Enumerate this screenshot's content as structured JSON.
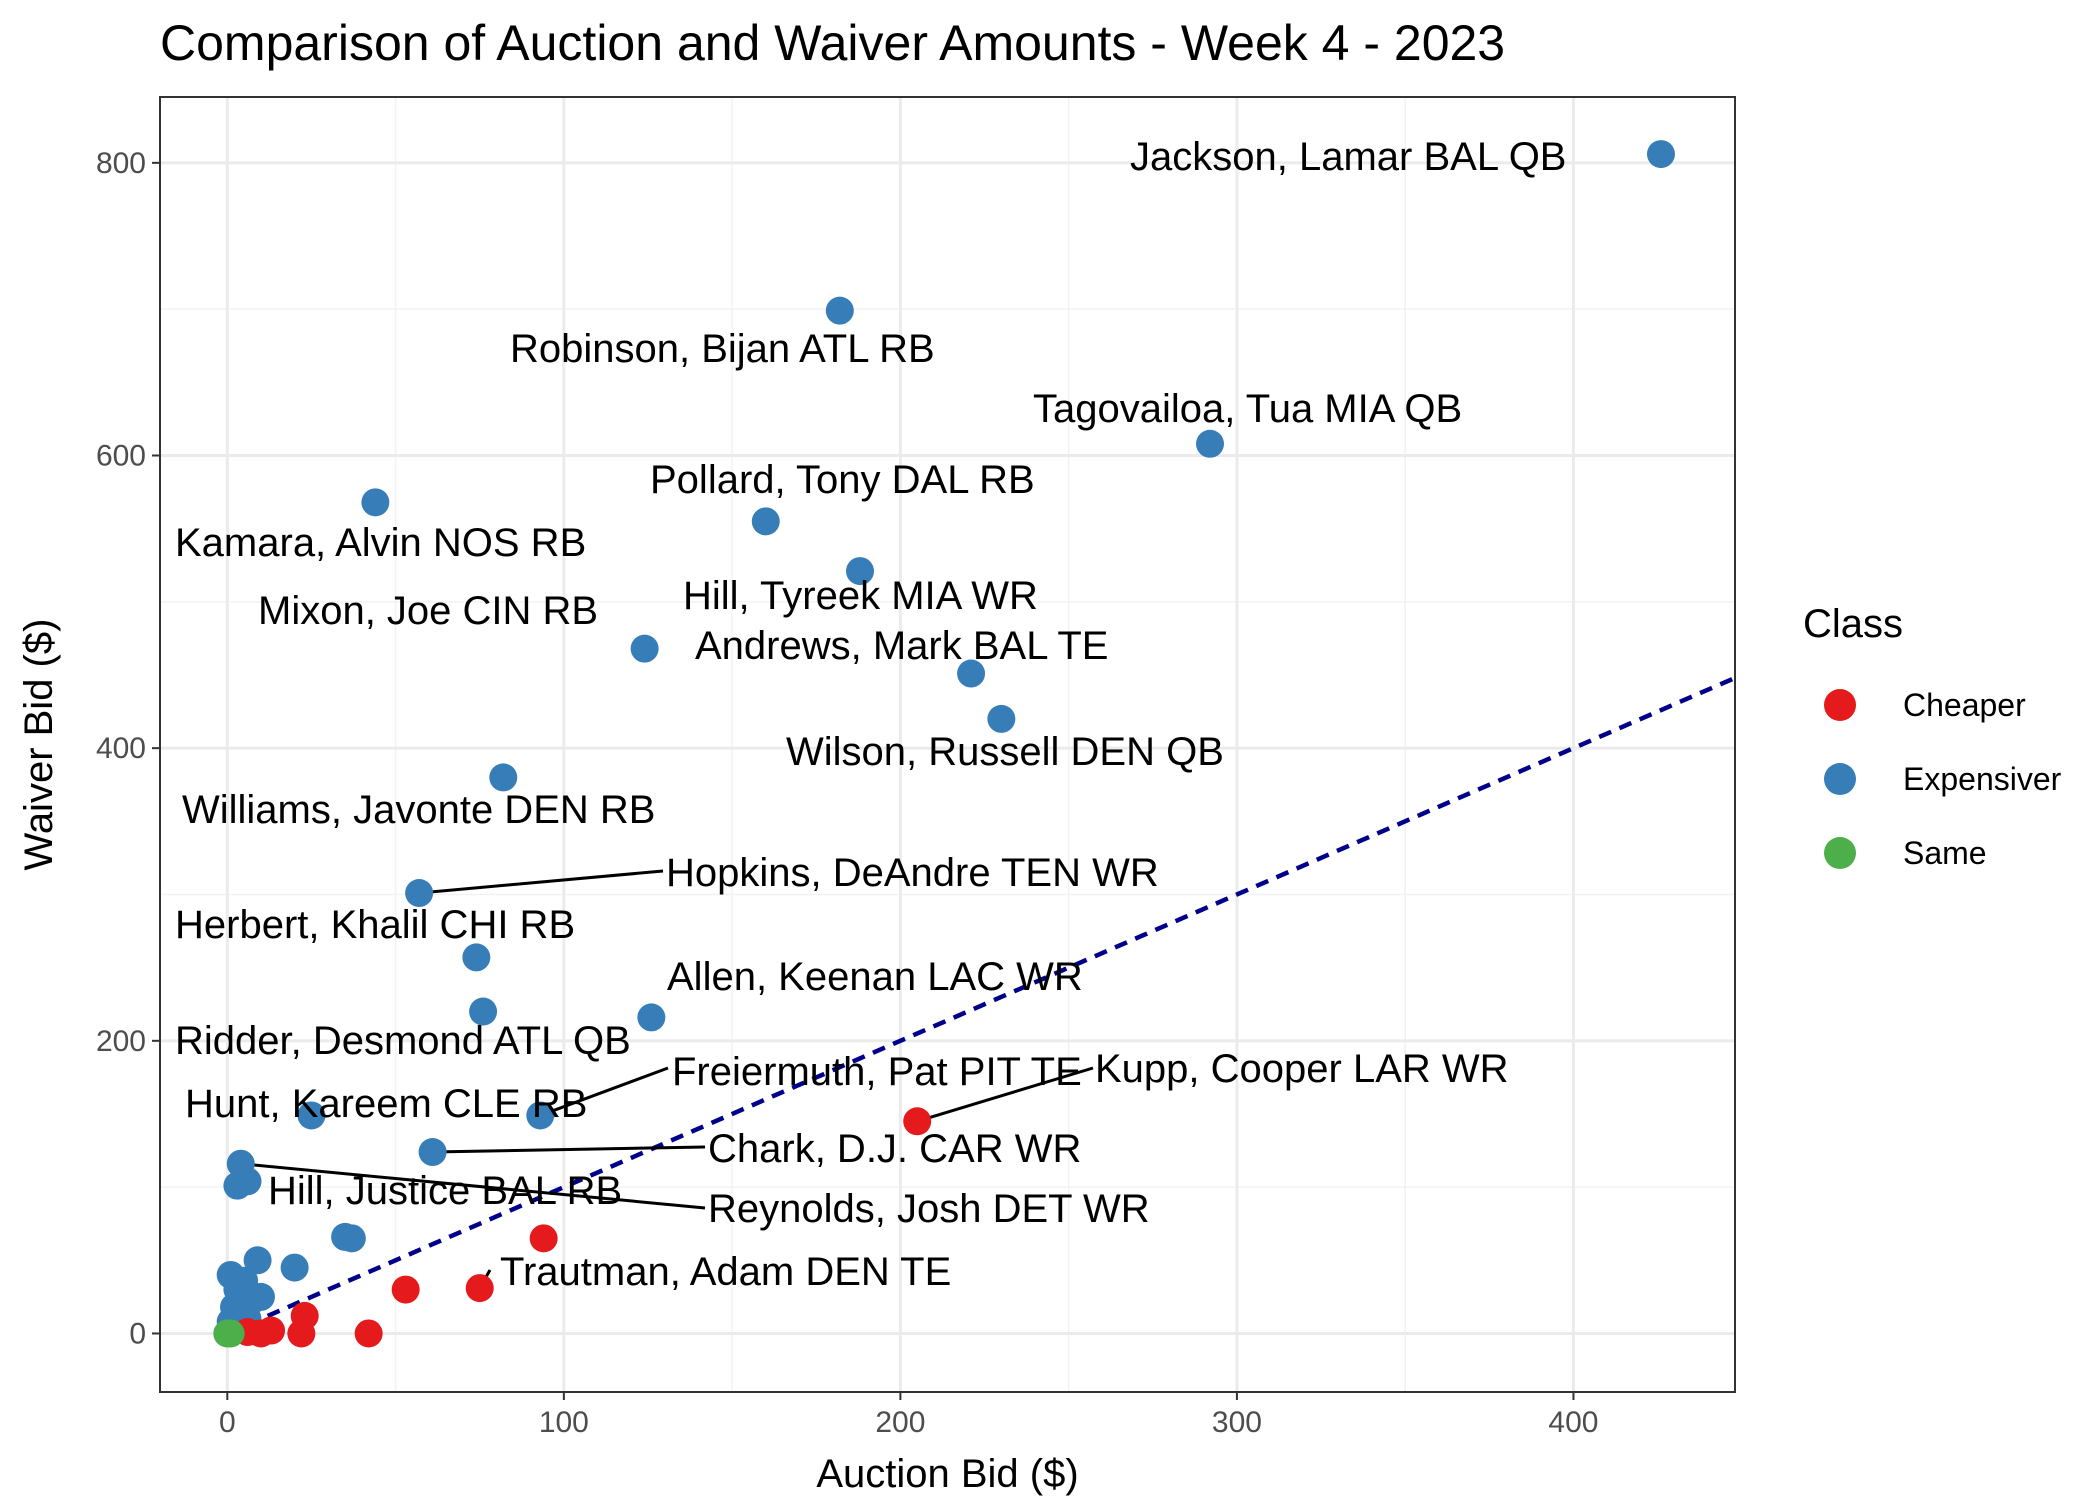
{
  "chart_data": {
    "type": "scatter",
    "title": "Comparison of Auction and Waiver Amounts - Week 4 - 2023",
    "xlabel": "Auction Bid ($)",
    "ylabel": "Waiver Bid ($)",
    "xlim": [
      -20,
      448
    ],
    "ylim": [
      -40,
      845
    ],
    "x_ticks": [
      0,
      100,
      200,
      300,
      400
    ],
    "y_ticks": [
      0,
      200,
      400,
      600,
      800
    ],
    "grid": true,
    "legend": {
      "title": "Class",
      "position": "right",
      "entries": [
        {
          "label": "Cheaper",
          "color": "#E41A1C"
        },
        {
          "label": "Expensiver",
          "color": "#377EB8"
        },
        {
          "label": "Same",
          "color": "#4DAF4A"
        }
      ]
    },
    "reference_line": {
      "slope": 1,
      "intercept": 0,
      "style": "dashed",
      "color": "#00008B"
    },
    "labeled_points": [
      {
        "label": "Jackson, Lamar BAL QB",
        "x": 426,
        "y": 806,
        "class": "Expensiver"
      },
      {
        "label": "Robinson, Bijan ATL RB",
        "x": 182,
        "y": 699,
        "class": "Expensiver"
      },
      {
        "label": "Tagovailoa, Tua MIA QB",
        "x": 292,
        "y": 608,
        "class": "Expensiver"
      },
      {
        "label": "Kamara, Alvin NOS RB",
        "x": 44,
        "y": 568,
        "class": "Expensiver"
      },
      {
        "label": "Pollard, Tony DAL RB",
        "x": 160,
        "y": 555,
        "class": "Expensiver"
      },
      {
        "label": "Hill, Tyreek MIA WR",
        "x": 188,
        "y": 521,
        "class": "Expensiver"
      },
      {
        "label": "Mixon, Joe CIN RB",
        "x": 124,
        "y": 468,
        "class": "Expensiver"
      },
      {
        "label": "Andrews, Mark BAL TE",
        "x": 221,
        "y": 451,
        "class": "Expensiver"
      },
      {
        "label": "Wilson, Russell DEN QB",
        "x": 230,
        "y": 420,
        "class": "Expensiver"
      },
      {
        "label": "Williams, Javonte DEN RB",
        "x": 82,
        "y": 380,
        "class": "Expensiver"
      },
      {
        "label": "Hopkins, DeAndre TEN WR",
        "x": 57,
        "y": 301,
        "class": "Expensiver"
      },
      {
        "label": "Herbert, Khalil CHI RB",
        "x": 74,
        "y": 257,
        "class": "Expensiver"
      },
      {
        "label": "Ridder, Desmond ATL QB",
        "x": 76,
        "y": 220,
        "class": "Expensiver"
      },
      {
        "label": "Allen, Keenan LAC WR",
        "x": 126,
        "y": 216,
        "class": "Expensiver"
      },
      {
        "label": "Freiermuth, Pat PIT TE",
        "x": 93,
        "y": 149,
        "class": "Expensiver"
      },
      {
        "label": "Kupp, Cooper LAR WR",
        "x": 205,
        "y": 145,
        "class": "Cheaper"
      },
      {
        "label": "Hunt, Kareem CLE RB",
        "x": 25,
        "y": 149,
        "class": "Expensiver"
      },
      {
        "label": "Chark, D.J. CAR WR",
        "x": 61,
        "y": 124,
        "class": "Expensiver"
      },
      {
        "label": "Reynolds, Josh DET WR",
        "x": 4,
        "y": 116,
        "class": "Expensiver"
      },
      {
        "label": "Hill, Justice BAL RB",
        "x": 35,
        "y": 66,
        "class": "Expensiver"
      },
      {
        "label": "Trautman, Adam DEN TE",
        "x": 75,
        "y": 31,
        "class": "Cheaper"
      }
    ],
    "other_points": [
      {
        "x": 6,
        "y": 104,
        "class": "Expensiver"
      },
      {
        "x": 3,
        "y": 101,
        "class": "Expensiver"
      },
      {
        "x": 37,
        "y": 65,
        "class": "Expensiver"
      },
      {
        "x": 9,
        "y": 50,
        "class": "Expensiver"
      },
      {
        "x": 20,
        "y": 45,
        "class": "Expensiver"
      },
      {
        "x": 1,
        "y": 40,
        "class": "Expensiver"
      },
      {
        "x": 5,
        "y": 36,
        "class": "Expensiver"
      },
      {
        "x": 3,
        "y": 30,
        "class": "Expensiver"
      },
      {
        "x": 10,
        "y": 25,
        "class": "Expensiver"
      },
      {
        "x": 7,
        "y": 22,
        "class": "Expensiver"
      },
      {
        "x": 2,
        "y": 18,
        "class": "Expensiver"
      },
      {
        "x": 4,
        "y": 12,
        "class": "Expensiver"
      },
      {
        "x": 1,
        "y": 8,
        "class": "Expensiver"
      },
      {
        "x": 6,
        "y": 10,
        "class": "Expensiver"
      },
      {
        "x": 2,
        "y": 4,
        "class": "Expensiver"
      },
      {
        "x": 94,
        "y": 65,
        "class": "Cheaper"
      },
      {
        "x": 53,
        "y": 30,
        "class": "Cheaper"
      },
      {
        "x": 23,
        "y": 12,
        "class": "Cheaper"
      },
      {
        "x": 22,
        "y": 0,
        "class": "Cheaper"
      },
      {
        "x": 42,
        "y": 0,
        "class": "Cheaper"
      },
      {
        "x": 13,
        "y": 2,
        "class": "Cheaper"
      },
      {
        "x": 10,
        "y": 0,
        "class": "Cheaper"
      },
      {
        "x": 6,
        "y": 1,
        "class": "Cheaper"
      },
      {
        "x": 1,
        "y": 0,
        "class": "Same"
      },
      {
        "x": 0,
        "y": 0,
        "class": "Same"
      }
    ]
  }
}
